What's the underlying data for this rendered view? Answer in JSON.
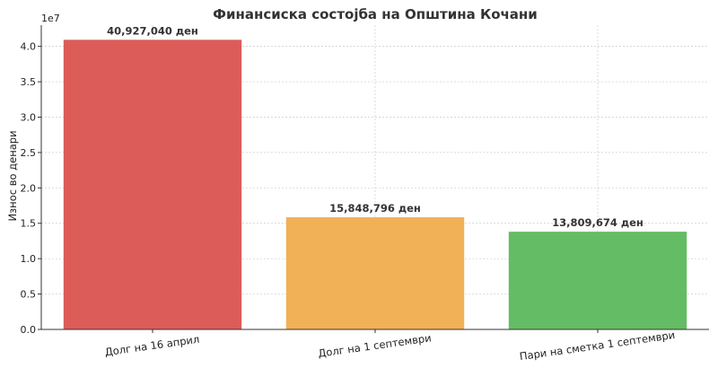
{
  "chart_data": {
    "type": "bar",
    "title": "Финансиска состојба на Општина Кочани",
    "ylabel": "Износ во денари",
    "xlabel": "",
    "y_offset_label": "1e7",
    "ylim": [
      0,
      4.3
    ],
    "yticks": [
      "0.0",
      "0.5",
      "1.0",
      "1.5",
      "2.0",
      "2.5",
      "3.0",
      "3.5",
      "4.0"
    ],
    "grid": true,
    "categories": [
      "Долг на 16 април",
      "Долг на 1 септември",
      "Пари на сметка 1 септември"
    ],
    "values": [
      40927040,
      15848796,
      13809674
    ],
    "value_labels": [
      "40,927,040 ден",
      "15,848,796 ден",
      "13,809,674 ден"
    ],
    "colors": [
      "#d9534f",
      "#f0ad4e",
      "#5cb85c"
    ]
  }
}
